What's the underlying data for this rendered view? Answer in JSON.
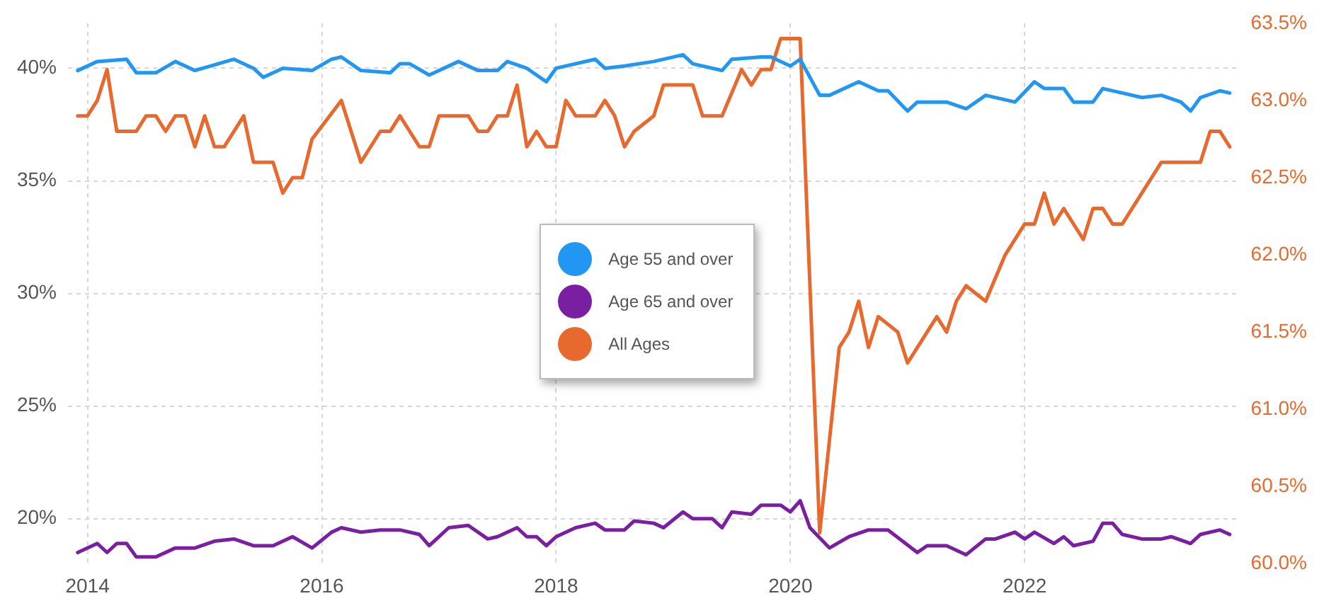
{
  "chart_data": {
    "type": "line",
    "xlim": [
      "2013-11",
      "2023-11"
    ],
    "xticks": [
      "2014",
      "2016",
      "2018",
      "2020",
      "2022"
    ],
    "ylim": [
      18,
      42
    ],
    "yticks": [
      {
        "value": 20,
        "label": "20%"
      },
      {
        "value": 25,
        "label": "25%"
      },
      {
        "value": 30,
        "label": "30%"
      },
      {
        "value": 35,
        "label": "35%"
      },
      {
        "value": 40,
        "label": "40%"
      }
    ],
    "y2lim": [
      60,
      63.5
    ],
    "y2ticks": [
      {
        "value": 60,
        "label": "60.0%"
      },
      {
        "value": 60.5,
        "label": "60.5%"
      },
      {
        "value": 61,
        "label": "61.0%"
      },
      {
        "value": 61.5,
        "label": "61.5%"
      },
      {
        "value": 62,
        "label": "62.0%"
      },
      {
        "value": 62.5,
        "label": "62.5%"
      },
      {
        "value": 63,
        "label": "63.0%"
      },
      {
        "value": 63.5,
        "label": "63.5%"
      }
    ],
    "grid": true,
    "legend": "center",
    "marker": "none",
    "line_style": "solid",
    "series": [
      {
        "name": "Age 55 and over",
        "color": "#2196f3",
        "x": [
          "2013-12",
          "2014-02",
          "2014-05",
          "2014-06",
          "2014-08",
          "2014-10",
          "2014-12",
          "2015-04",
          "2015-06",
          "2015-07",
          "2015-09",
          "2015-12",
          "2016-02",
          "2016-03",
          "2016-05",
          "2016-08",
          "2016-09",
          "2016-10",
          "2016-12",
          "2017-03",
          "2017-05",
          "2017-07",
          "2017-08",
          "2017-10",
          "2017-12",
          "2018-01",
          "2018-05",
          "2018-06",
          "2018-08",
          "2018-11",
          "2019-02",
          "2019-03",
          "2019-06",
          "2019-07",
          "2019-10",
          "2019-11",
          "2020-01",
          "2020-02",
          "2020-04",
          "2020-05",
          "2020-08",
          "2020-10",
          "2020-11",
          "2021-01",
          "2021-02",
          "2021-05",
          "2021-07",
          "2021-09",
          "2021-12",
          "2022-02",
          "2022-03",
          "2022-05",
          "2022-06",
          "2022-08",
          "2022-09",
          "2022-11",
          "2023-01",
          "2023-03",
          "2023-05",
          "2023-06",
          "2023-07",
          "2023-09",
          "2023-10"
        ],
        "values": [
          39.9,
          40.3,
          40.4,
          39.8,
          39.8,
          40.3,
          39.9,
          40.4,
          40.0,
          39.6,
          40.0,
          39.9,
          40.4,
          40.5,
          39.9,
          39.8,
          40.2,
          40.2,
          39.7,
          40.3,
          39.9,
          39.9,
          40.3,
          40.0,
          39.4,
          40.0,
          40.4,
          40.0,
          40.1,
          40.3,
          40.6,
          40.2,
          39.9,
          40.4,
          40.5,
          40.5,
          40.1,
          40.4,
          38.8,
          38.8,
          39.4,
          39.0,
          39.0,
          38.1,
          38.5,
          38.5,
          38.2,
          38.8,
          38.5,
          39.4,
          39.1,
          39.1,
          38.5,
          38.5,
          39.1,
          38.9,
          38.7,
          38.8,
          38.5,
          38.1,
          38.7,
          39.0,
          38.9
        ]
      },
      {
        "name": "Age 65 and over",
        "color": "#7b1fa2",
        "x": [
          "2013-12",
          "2014-02",
          "2014-03",
          "2014-04",
          "2014-05",
          "2014-06",
          "2014-08",
          "2014-10",
          "2014-12",
          "2015-02",
          "2015-04",
          "2015-06",
          "2015-08",
          "2015-10",
          "2015-12",
          "2016-02",
          "2016-03",
          "2016-05",
          "2016-07",
          "2016-09",
          "2016-11",
          "2016-12",
          "2017-02",
          "2017-04",
          "2017-06",
          "2017-07",
          "2017-09",
          "2017-10",
          "2017-11",
          "2017-12",
          "2018-01",
          "2018-03",
          "2018-05",
          "2018-06",
          "2018-08",
          "2018-09",
          "2018-11",
          "2018-12",
          "2019-02",
          "2019-03",
          "2019-05",
          "2019-06",
          "2019-07",
          "2019-09",
          "2019-10",
          "2019-12",
          "2020-01",
          "2020-02",
          "2020-03",
          "2020-05",
          "2020-07",
          "2020-09",
          "2020-11",
          "2021-02",
          "2021-03",
          "2021-05",
          "2021-07",
          "2021-09",
          "2021-10",
          "2021-12",
          "2022-01",
          "2022-02",
          "2022-04",
          "2022-05",
          "2022-06",
          "2022-08",
          "2022-09",
          "2022-10",
          "2022-11",
          "2023-01",
          "2023-03",
          "2023-04",
          "2023-06",
          "2023-07",
          "2023-09",
          "2023-10"
        ],
        "values": [
          18.5,
          18.9,
          18.5,
          18.9,
          18.9,
          18.3,
          18.3,
          18.7,
          18.7,
          19.0,
          19.1,
          18.8,
          18.8,
          19.2,
          18.7,
          19.4,
          19.6,
          19.4,
          19.5,
          19.5,
          19.3,
          18.8,
          19.6,
          19.7,
          19.1,
          19.2,
          19.6,
          19.2,
          19.2,
          18.8,
          19.2,
          19.6,
          19.8,
          19.5,
          19.5,
          19.9,
          19.8,
          19.6,
          20.3,
          20.0,
          20.0,
          19.6,
          20.3,
          20.2,
          20.6,
          20.6,
          20.3,
          20.8,
          19.6,
          18.7,
          19.2,
          19.5,
          19.5,
          18.5,
          18.8,
          18.8,
          18.4,
          19.1,
          19.1,
          19.4,
          19.1,
          19.4,
          18.9,
          19.2,
          18.8,
          19.0,
          19.8,
          19.8,
          19.3,
          19.1,
          19.1,
          19.2,
          18.9,
          19.3,
          19.5,
          19.3
        ]
      },
      {
        "name": "All Ages",
        "color": "#e8692e",
        "axis": "y2",
        "x": [
          "2013-12",
          "2014-01",
          "2014-02",
          "2014-03",
          "2014-04",
          "2014-06",
          "2014-07",
          "2014-08",
          "2014-09",
          "2014-10",
          "2014-11",
          "2014-12",
          "2015-01",
          "2015-02",
          "2015-03",
          "2015-05",
          "2015-06",
          "2015-08",
          "2015-09",
          "2015-10",
          "2015-11",
          "2015-12",
          "2016-03",
          "2016-05",
          "2016-07",
          "2016-08",
          "2016-09",
          "2016-10",
          "2016-11",
          "2016-12",
          "2017-01",
          "2017-04",
          "2017-05",
          "2017-06",
          "2017-07",
          "2017-08",
          "2017-09",
          "2017-10",
          "2017-11",
          "2017-12",
          "2018-01",
          "2018-02",
          "2018-03",
          "2018-05",
          "2018-06",
          "2018-07",
          "2018-08",
          "2018-09",
          "2018-11",
          "2018-12",
          "2019-03",
          "2019-04",
          "2019-06",
          "2019-08",
          "2019-09",
          "2019-10",
          "2019-11",
          "2019-12",
          "2020-02",
          "2020-04",
          "2020-06",
          "2020-07",
          "2020-08",
          "2020-09",
          "2020-10",
          "2020-12",
          "2021-01",
          "2021-04",
          "2021-05",
          "2021-06",
          "2021-07",
          "2021-09",
          "2021-11",
          "2022-01",
          "2022-02",
          "2022-03",
          "2022-04",
          "2022-05",
          "2022-07",
          "2022-08",
          "2022-09",
          "2022-10",
          "2022-11",
          "2023-03",
          "2023-07",
          "2023-08",
          "2023-09",
          "2023-10"
        ],
        "values": [
          62.9,
          62.9,
          63.0,
          63.2,
          62.8,
          62.8,
          62.9,
          62.9,
          62.8,
          62.9,
          62.9,
          62.7,
          62.9,
          62.7,
          62.7,
          62.9,
          62.6,
          62.6,
          62.4,
          62.5,
          62.5,
          62.75,
          63.0,
          62.6,
          62.8,
          62.8,
          62.9,
          62.8,
          62.7,
          62.7,
          62.9,
          62.9,
          62.8,
          62.8,
          62.9,
          62.9,
          63.1,
          62.7,
          62.8,
          62.7,
          62.7,
          63.0,
          62.9,
          62.9,
          63.0,
          62.9,
          62.7,
          62.8,
          62.9,
          63.1,
          63.1,
          62.9,
          62.9,
          63.2,
          63.1,
          63.2,
          63.2,
          63.4,
          63.4,
          60.2,
          61.4,
          61.5,
          61.7,
          61.4,
          61.6,
          61.5,
          61.3,
          61.6,
          61.5,
          61.7,
          61.8,
          61.7,
          62.0,
          62.2,
          62.2,
          62.4,
          62.2,
          62.3,
          62.1,
          62.3,
          62.3,
          62.2,
          62.2,
          62.6,
          62.6,
          62.8,
          62.8,
          62.7
        ]
      }
    ]
  }
}
